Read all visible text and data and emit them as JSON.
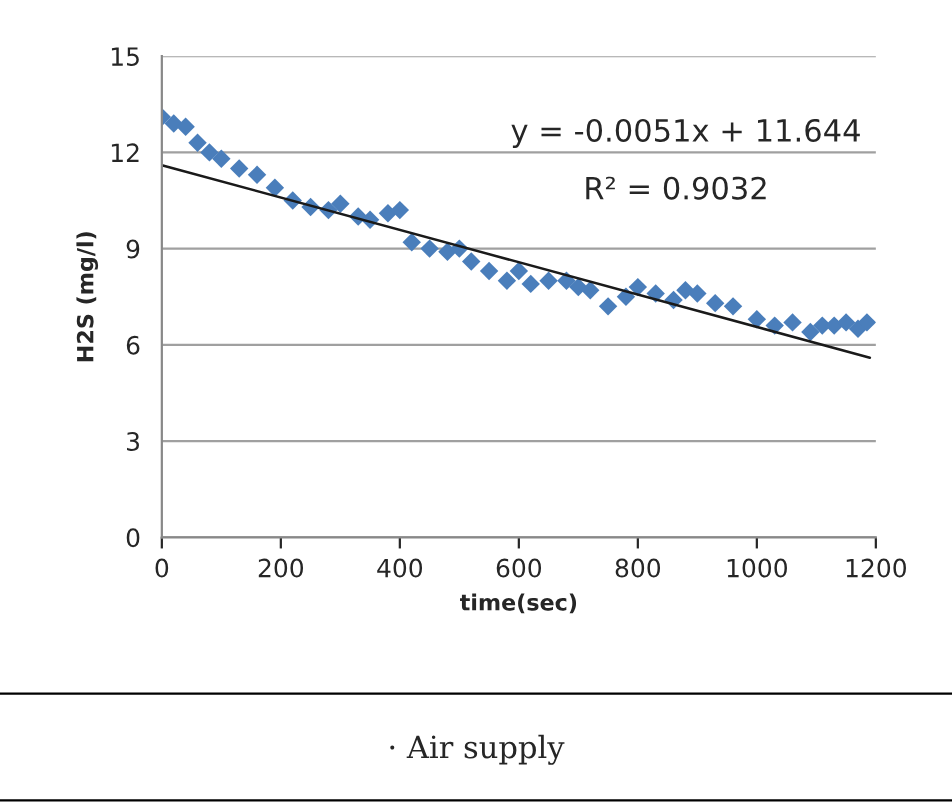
{
  "chart_data": {
    "type": "scatter",
    "xlabel": "time(sec)",
    "ylabel": "H2S (mg/l)",
    "xlim": [
      0,
      1200
    ],
    "ylim": [
      0,
      15
    ],
    "xticks": [
      0,
      200,
      400,
      600,
      800,
      1000,
      1200
    ],
    "yticks": [
      0,
      3,
      6,
      9,
      12,
      15
    ],
    "grid": "y",
    "marker": "diamond",
    "legend": false,
    "series": [
      {
        "color": "#4a7ebb",
        "x": [
          0,
          20,
          40,
          60,
          80,
          100,
          130,
          160,
          190,
          220,
          250,
          280,
          300,
          330,
          350,
          380,
          400,
          420,
          450,
          480,
          500,
          520,
          550,
          580,
          600,
          620,
          650,
          680,
          700,
          720,
          750,
          780,
          800,
          830,
          860,
          880,
          900,
          930,
          960,
          1000,
          1030,
          1060,
          1090,
          1110,
          1130,
          1150,
          1170,
          1185
        ],
        "values": [
          13.1,
          12.9,
          12.8,
          12.3,
          12.0,
          11.8,
          11.5,
          11.3,
          10.9,
          10.5,
          10.3,
          10.2,
          10.4,
          10.0,
          9.9,
          10.1,
          10.2,
          9.2,
          9.0,
          8.9,
          9.0,
          8.6,
          8.3,
          8.0,
          8.3,
          7.9,
          8.0,
          8.0,
          7.8,
          7.7,
          7.2,
          7.5,
          7.8,
          7.6,
          7.4,
          7.7,
          7.6,
          7.3,
          7.2,
          6.8,
          6.6,
          6.7,
          6.4,
          6.6,
          6.6,
          6.7,
          6.5,
          6.7
        ]
      },
      {
        "type": "line",
        "marker": "none",
        "color": "#1a1a1a",
        "x": [
          0,
          1190
        ],
        "values": [
          11.6,
          5.6
        ]
      }
    ],
    "annotations": [
      "y = -0.0051x + 11.644",
      "R² = 0.9032",
      "· Air supply"
    ]
  }
}
